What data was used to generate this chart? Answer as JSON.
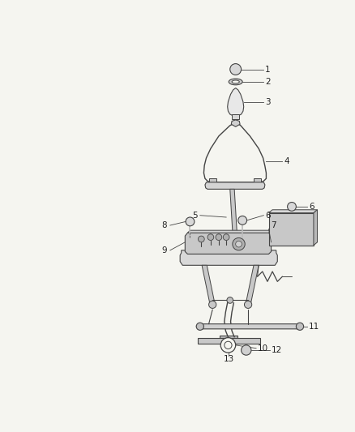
{
  "background_color": "#f5f5f0",
  "line_color": "#444444",
  "label_color": "#222222",
  "fig_width": 4.38,
  "fig_height": 5.33,
  "dpi": 100
}
